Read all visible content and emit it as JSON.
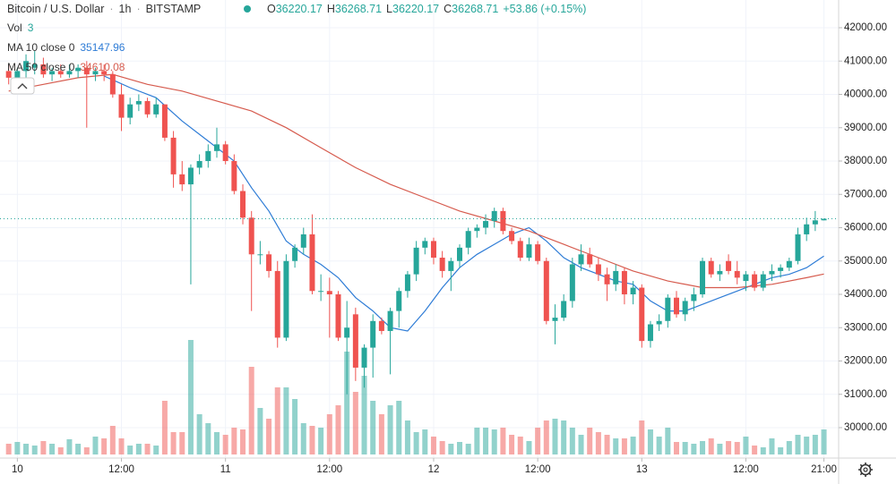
{
  "chart_data": {
    "type": "candlestick",
    "title": "Bitcoin / U.S. Dollar",
    "interval": "1h",
    "exchange": "BITSTAMP",
    "ohlc_header": [
      {
        "label": "O",
        "value": "36220.17"
      },
      {
        "label": "H",
        "value": "36268.71"
      },
      {
        "label": "L",
        "value": "36220.17"
      },
      {
        "label": "C",
        "value": "36268.71"
      }
    ],
    "change": "+53.86 (+0.15%)",
    "volume_label": "Vol",
    "volume_setting": "3",
    "up_color": "#26a69a",
    "down_color": "#ef5350",
    "grid": true,
    "ylim": [
      29087,
      42832
    ],
    "yticks": [
      {
        "value": 30000,
        "label": "30000.00"
      },
      {
        "value": 31000,
        "label": "31000.00"
      },
      {
        "value": 32000,
        "label": "32000.00"
      },
      {
        "value": 33000,
        "label": "33000.00"
      },
      {
        "value": 34000,
        "label": "34000.00"
      },
      {
        "value": 35000,
        "label": "35000.00"
      },
      {
        "value": 36000,
        "label": "36000.00"
      },
      {
        "value": 37000,
        "label": "37000.00"
      },
      {
        "value": 38000,
        "label": "38000.00"
      },
      {
        "value": 39000,
        "label": "39000.00"
      },
      {
        "value": 40000,
        "label": "40000.00"
      },
      {
        "value": 41000,
        "label": "41000.00"
      },
      {
        "value": 42000,
        "label": "42000.00"
      }
    ],
    "xlim": [
      -1,
      95.7
    ],
    "xticks": [
      {
        "value": 1,
        "label": "10"
      },
      {
        "value": 13,
        "label": "12:00"
      },
      {
        "value": 25,
        "label": "11"
      },
      {
        "value": 37,
        "label": "12:00"
      },
      {
        "value": 49,
        "label": "12"
      },
      {
        "value": 61,
        "label": "12:00"
      },
      {
        "value": 73,
        "label": "13"
      },
      {
        "value": 85,
        "label": "12:00"
      },
      {
        "value": 94,
        "label": "21:00"
      }
    ],
    "open": [
      40700,
      40500,
      40700,
      40800,
      40900,
      40600,
      40700,
      40600,
      40700,
      40800,
      40600,
      40700,
      40600,
      40000,
      39300,
      39700,
      39800,
      39400,
      39700,
      38700,
      37600,
      37300,
      37800,
      38000,
      38300,
      38500,
      38000,
      37100,
      36300,
      35200,
      35200,
      34700,
      32700,
      35000,
      35400,
      35800,
      34100,
      34100,
      34000,
      32700,
      33400,
      31800,
      32400,
      33200,
      32900,
      33500,
      34100,
      34600,
      35400,
      35600,
      35100,
      34700,
      35000,
      35400,
      35900,
      36000,
      36200,
      36500,
      35900,
      35600,
      35100,
      35500,
      35000,
      33200,
      33300,
      33800,
      34900,
      35200,
      34900,
      34600,
      34300,
      34700,
      34000,
      34200,
      32600,
      33100,
      33200,
      33900,
      33400,
      33800,
      34000,
      35000,
      34600,
      35000,
      34700,
      34400,
      34600,
      34200,
      34600,
      34700,
      34800,
      35000,
      35800,
      36100,
      36220.17
    ],
    "high": [
      40900,
      40800,
      41200,
      41300,
      41100,
      40800,
      40900,
      40900,
      40900,
      41000,
      40800,
      40900,
      40700,
      40300,
      39900,
      40000,
      39900,
      39900,
      39700,
      38900,
      38000,
      37900,
      38200,
      38500,
      39000,
      38600,
      38200,
      37300,
      36500,
      35600,
      35300,
      35000,
      35200,
      35500,
      36000,
      36400,
      34600,
      34500,
      34100,
      33800,
      33600,
      32500,
      33400,
      33300,
      33600,
      34200,
      34700,
      35600,
      35700,
      35700,
      35300,
      35100,
      35500,
      36000,
      36100,
      36400,
      36600,
      36600,
      36000,
      35700,
      35700,
      35600,
      35100,
      33700,
      34000,
      35100,
      35500,
      35400,
      35100,
      34800,
      34900,
      34800,
      34400,
      34300,
      33200,
      33400,
      34000,
      34100,
      33900,
      34200,
      35100,
      35100,
      34900,
      35200,
      35000,
      34700,
      34700,
      34700,
      34900,
      34900,
      35100,
      36000,
      36300,
      36500,
      36268.71
    ],
    "low": [
      40300,
      40400,
      40500,
      40600,
      40500,
      40400,
      40500,
      40500,
      40500,
      39000,
      40400,
      40400,
      39900,
      38900,
      39100,
      39500,
      39300,
      39300,
      38600,
      37200,
      37100,
      34300,
      37600,
      37800,
      38100,
      37900,
      37000,
      36100,
      33500,
      34900,
      34500,
      32400,
      32600,
      34800,
      35200,
      34000,
      33800,
      32700,
      32600,
      31000,
      31400,
      31200,
      31500,
      32800,
      31600,
      33000,
      33900,
      34400,
      35200,
      34900,
      34500,
      34100,
      34800,
      35200,
      35700,
      35800,
      36000,
      35800,
      35500,
      35000,
      35000,
      34900,
      33100,
      32500,
      33200,
      33600,
      34700,
      34800,
      34400,
      33800,
      34100,
      33700,
      33700,
      32400,
      32400,
      32900,
      33000,
      33300,
      33200,
      33500,
      33900,
      34500,
      34400,
      34600,
      34300,
      34100,
      34100,
      34100,
      34400,
      34500,
      34700,
      34900,
      35600,
      35900,
      36220.17
    ],
    "close": [
      40500,
      40700,
      41000,
      40900,
      40600,
      40700,
      40600,
      40700,
      40800,
      40600,
      40700,
      40600,
      40000,
      39300,
      39700,
      39800,
      39400,
      39700,
      38700,
      37600,
      37300,
      37800,
      38000,
      38300,
      38500,
      38000,
      37100,
      36300,
      35200,
      35200,
      34700,
      32700,
      35000,
      35400,
      35800,
      34100,
      34100,
      34000,
      32700,
      33000,
      31800,
      32400,
      33200,
      32900,
      33500,
      34100,
      34600,
      35400,
      35600,
      35100,
      34700,
      35000,
      35400,
      35900,
      36000,
      36200,
      36500,
      35900,
      35600,
      35100,
      35500,
      35000,
      33200,
      33300,
      33800,
      34900,
      35200,
      34900,
      34600,
      34300,
      34700,
      34000,
      34200,
      32600,
      33100,
      33200,
      33900,
      33400,
      33800,
      34000,
      35000,
      34600,
      34700,
      34700,
      34500,
      34600,
      34200,
      34600,
      34700,
      34800,
      35000,
      35800,
      36100,
      36220,
      36268.71
    ],
    "volume": [
      12,
      14,
      12,
      10,
      15,
      12,
      8,
      17,
      12,
      8,
      20,
      18,
      32,
      18,
      10,
      12,
      12,
      10,
      60,
      25,
      25,
      128,
      45,
      35,
      25,
      22,
      30,
      28,
      98,
      52,
      40,
      75,
      75,
      62,
      35,
      32,
      30,
      45,
      55,
      115,
      70,
      88,
      60,
      45,
      55,
      60,
      38,
      25,
      28,
      20,
      15,
      12,
      14,
      12,
      30,
      30,
      28,
      30,
      22,
      20,
      15,
      30,
      38,
      40,
      38,
      30,
      22,
      30,
      25,
      22,
      18,
      18,
      20,
      38,
      28,
      20,
      30,
      14,
      14,
      12,
      15,
      18,
      12,
      15,
      14,
      20,
      10,
      8,
      18,
      8,
      15,
      22,
      20,
      22,
      28
    ],
    "moving_averages": [
      {
        "name": "MA 10 close 0",
        "last": "35147.96",
        "color": "#2e7cd6",
        "x": [
          11,
          14,
          17,
          20,
          23,
          26,
          28,
          30,
          32,
          34,
          36,
          38,
          40,
          42,
          44,
          46,
          48,
          50,
          52,
          54,
          56,
          58,
          60,
          62,
          64,
          66,
          68,
          70,
          72,
          74,
          76,
          78,
          80,
          82,
          84,
          86,
          88,
          90,
          92,
          94
        ],
        "values": [
          40550,
          40200,
          39900,
          39200,
          38600,
          38000,
          37200,
          36500,
          35600,
          35200,
          34900,
          34500,
          33900,
          33500,
          33000,
          32900,
          33500,
          34200,
          34800,
          35200,
          35500,
          35800,
          36000,
          35600,
          35100,
          34800,
          34600,
          34400,
          34300,
          33800,
          33500,
          33500,
          33700,
          33900,
          34100,
          34300,
          34500,
          34600,
          34800,
          35148
        ]
      },
      {
        "name": "MA 50 close 0",
        "last": "34610.08",
        "color": "#d65b4e",
        "x": [
          0,
          4,
          8,
          12,
          16,
          20,
          24,
          28,
          32,
          36,
          40,
          44,
          48,
          52,
          56,
          60,
          64,
          68,
          72,
          76,
          80,
          84,
          88,
          92,
          94
        ],
        "values": [
          40100,
          40300,
          40500,
          40600,
          40300,
          40100,
          39800,
          39500,
          39000,
          38400,
          37800,
          37300,
          36900,
          36500,
          36200,
          35900,
          35500,
          35100,
          34700,
          34400,
          34200,
          34200,
          34300,
          34500,
          34610
        ]
      }
    ]
  }
}
